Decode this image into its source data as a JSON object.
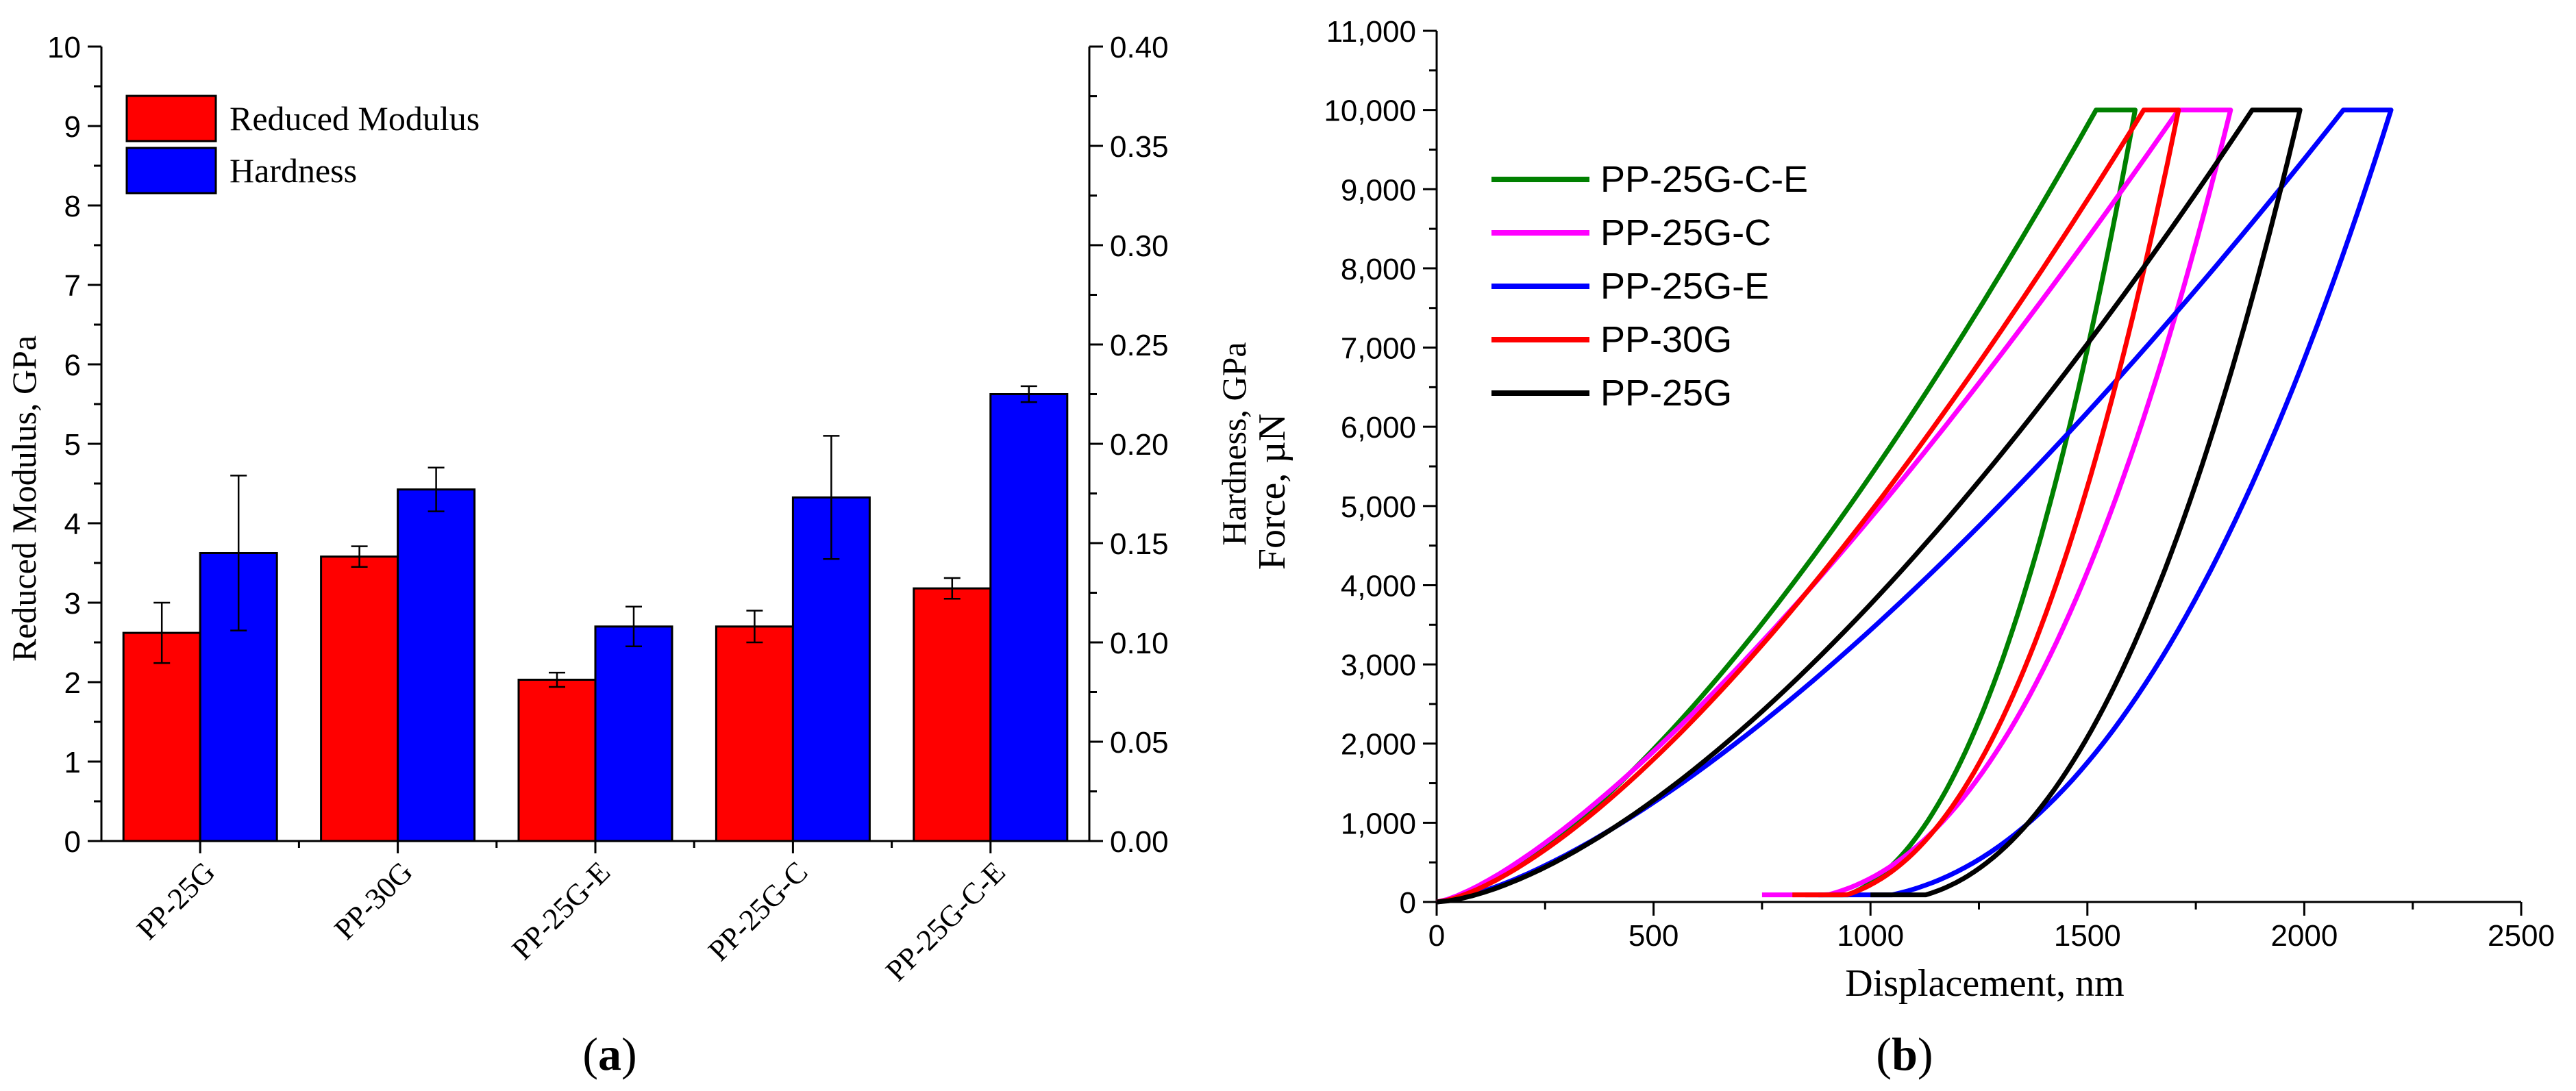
{
  "chart_data": [
    {
      "panel_label": "(a)",
      "panel_letter": "a",
      "type": "bar",
      "title": "",
      "xlabel": "",
      "ylabel": "Reduced Modulus, GPa",
      "y2label": "Hardness, GPa",
      "ylim": [
        0,
        10
      ],
      "y2lim": [
        0,
        0.4
      ],
      "yticks": [
        0,
        1,
        2,
        3,
        4,
        5,
        6,
        7,
        8,
        9,
        10
      ],
      "y2ticks": [
        "0.00",
        "0.05",
        "0.10",
        "0.15",
        "0.20",
        "0.25",
        "0.30",
        "0.35",
        "0.40"
      ],
      "categories": [
        "PP-25G",
        "PP-30G",
        "PP-25G-E",
        "PP-25G-C",
        "PP-25G-C-E"
      ],
      "legend_position": "top-left",
      "series": [
        {
          "name": "Reduced Modulus",
          "color": "#ff0000",
          "axis": "left",
          "values": [
            2.62,
            3.58,
            2.03,
            2.7,
            3.18
          ],
          "errors": [
            0.38,
            0.13,
            0.09,
            0.2,
            0.13
          ]
        },
        {
          "name": "Hardness",
          "color": "#0000ff",
          "axis": "right",
          "values": [
            0.145,
            0.177,
            0.108,
            0.173,
            0.225
          ],
          "errors": [
            0.039,
            0.011,
            0.01,
            0.031,
            0.004
          ]
        }
      ]
    },
    {
      "panel_label": "(b)",
      "panel_letter": "b",
      "type": "line",
      "title": "",
      "xlabel": "Displacement, nm",
      "ylabel": "Force, µN",
      "xlim": [
        0,
        2500
      ],
      "ylim": [
        0,
        11000
      ],
      "xticks": [
        "0",
        "500",
        "1000",
        "1500",
        "2000",
        "2500"
      ],
      "yticks": [
        "0",
        "1,000",
        "2,000",
        "3,000",
        "4,000",
        "5,000",
        "6,000",
        "7,000",
        "8,000",
        "9,000",
        "10,000",
        "11,000"
      ],
      "legend_position": "top-left",
      "series": [
        {
          "name": "PP-25G-C-E",
          "color": "#008000",
          "load_end": 1520,
          "hold_end": 1610,
          "unload_end": 850,
          "load_exp": 1.48,
          "unload_exp": 2.3
        },
        {
          "name": "PP-25G-C",
          "color": "#ff00ff",
          "load_end": 1710,
          "hold_end": 1830,
          "unload_end": 750,
          "load_exp": 1.35,
          "unload_exp": 2.4
        },
        {
          "name": "PP-25G-E",
          "color": "#0000ff",
          "load_end": 2090,
          "hold_end": 2200,
          "unload_end": 880,
          "load_exp": 1.45,
          "unload_exp": 2.3
        },
        {
          "name": "PP-30G",
          "color": "#ff0000",
          "load_end": 1630,
          "hold_end": 1710,
          "unload_end": 820,
          "load_exp": 1.45,
          "unload_exp": 2.4
        },
        {
          "name": "PP-25G",
          "color": "#000000",
          "load_end": 1880,
          "hold_end": 1990,
          "unload_end": 1000,
          "load_exp": 1.55,
          "unload_exp": 2.3
        }
      ]
    }
  ]
}
